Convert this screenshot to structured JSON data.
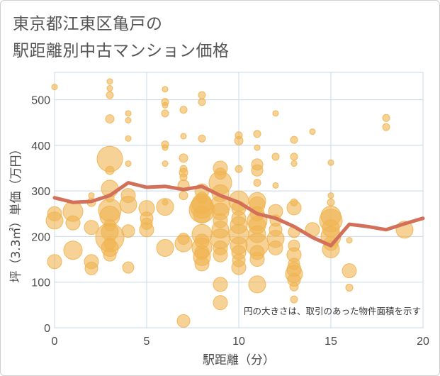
{
  "chart_data": {
    "type": "scatter",
    "title_lines": [
      "東京都江東区亀戸の",
      "駅距離別中古マンション価格"
    ],
    "xlabel": "駅距離（分）",
    "ylabel": "坪（3.3㎡）単価（万円）",
    "xlim": [
      0,
      20
    ],
    "ylim": [
      0,
      560
    ],
    "x_ticks": [
      0,
      5,
      10,
      15,
      20
    ],
    "y_ticks": [
      0,
      100,
      200,
      300,
      400,
      500
    ],
    "grid": true,
    "note": "円の大きさは、取引のあった物件面積を示す",
    "colors": {
      "bubble": "#f0b450",
      "line": "#d2705a",
      "grid": "#c8d8e8"
    },
    "trend_line": {
      "x": [
        0,
        1,
        2,
        3,
        4,
        5,
        6,
        7,
        8,
        9,
        10,
        11,
        12,
        13,
        14,
        15,
        16,
        17,
        18,
        19,
        20
      ],
      "y": [
        285,
        275,
        277,
        290,
        318,
        308,
        310,
        303,
        310,
        290,
        275,
        250,
        240,
        222,
        198,
        180,
        227,
        222,
        215,
        228,
        240
      ]
    },
    "points": [
      {
        "x": 0,
        "y": 528,
        "s": 4
      },
      {
        "x": 0,
        "y": 250,
        "s": 10
      },
      {
        "x": 0,
        "y": 235,
        "s": 12
      },
      {
        "x": 0,
        "y": 145,
        "s": 10
      },
      {
        "x": 1,
        "y": 255,
        "s": 14
      },
      {
        "x": 1,
        "y": 230,
        "s": 10
      },
      {
        "x": 1,
        "y": 170,
        "s": 13
      },
      {
        "x": 2,
        "y": 290,
        "s": 4
      },
      {
        "x": 2,
        "y": 275,
        "s": 6
      },
      {
        "x": 2,
        "y": 220,
        "s": 10
      },
      {
        "x": 2,
        "y": 145,
        "s": 10
      },
      {
        "x": 2,
        "y": 130,
        "s": 9
      },
      {
        "x": 3,
        "y": 540,
        "s": 4
      },
      {
        "x": 3,
        "y": 525,
        "s": 4
      },
      {
        "x": 3,
        "y": 510,
        "s": 5
      },
      {
        "x": 3,
        "y": 458,
        "s": 6
      },
      {
        "x": 3,
        "y": 370,
        "s": 18
      },
      {
        "x": 3,
        "y": 345,
        "s": 6
      },
      {
        "x": 3,
        "y": 305,
        "s": 12
      },
      {
        "x": 3,
        "y": 285,
        "s": 6
      },
      {
        "x": 3,
        "y": 258,
        "s": 16
      },
      {
        "x": 3,
        "y": 245,
        "s": 14
      },
      {
        "x": 3,
        "y": 225,
        "s": 8
      },
      {
        "x": 3,
        "y": 210,
        "s": 12
      },
      {
        "x": 3,
        "y": 198,
        "s": 20
      },
      {
        "x": 3,
        "y": 185,
        "s": 8
      },
      {
        "x": 3,
        "y": 175,
        "s": 12
      },
      {
        "x": 3,
        "y": 160,
        "s": 9
      },
      {
        "x": 4,
        "y": 470,
        "s": 4
      },
      {
        "x": 4,
        "y": 455,
        "s": 4
      },
      {
        "x": 4,
        "y": 415,
        "s": 4
      },
      {
        "x": 4,
        "y": 360,
        "s": 4
      },
      {
        "x": 4,
        "y": 290,
        "s": 10
      },
      {
        "x": 4,
        "y": 270,
        "s": 12
      },
      {
        "x": 4,
        "y": 212,
        "s": 9
      },
      {
        "x": 4,
        "y": 132,
        "s": 8
      },
      {
        "x": 5,
        "y": 262,
        "s": 11
      },
      {
        "x": 5,
        "y": 240,
        "s": 9
      },
      {
        "x": 5,
        "y": 228,
        "s": 8
      },
      {
        "x": 5,
        "y": 215,
        "s": 10
      },
      {
        "x": 6,
        "y": 523,
        "s": 4
      },
      {
        "x": 6,
        "y": 495,
        "s": 5
      },
      {
        "x": 6,
        "y": 488,
        "s": 4
      },
      {
        "x": 6,
        "y": 470,
        "s": 5
      },
      {
        "x": 6,
        "y": 402,
        "s": 5
      },
      {
        "x": 6,
        "y": 395,
        "s": 4
      },
      {
        "x": 6,
        "y": 360,
        "s": 4
      },
      {
        "x": 6,
        "y": 275,
        "s": 4
      },
      {
        "x": 6,
        "y": 265,
        "s": 12
      },
      {
        "x": 6,
        "y": 175,
        "s": 12
      },
      {
        "x": 7,
        "y": 478,
        "s": 5
      },
      {
        "x": 7,
        "y": 420,
        "s": 4
      },
      {
        "x": 7,
        "y": 372,
        "s": 6
      },
      {
        "x": 7,
        "y": 348,
        "s": 5
      },
      {
        "x": 7,
        "y": 340,
        "s": 6
      },
      {
        "x": 7,
        "y": 330,
        "s": 5
      },
      {
        "x": 7,
        "y": 312,
        "s": 8
      },
      {
        "x": 7,
        "y": 290,
        "s": 6
      },
      {
        "x": 7,
        "y": 195,
        "s": 8
      },
      {
        "x": 7,
        "y": 185,
        "s": 12
      },
      {
        "x": 7,
        "y": 15,
        "s": 9
      },
      {
        "x": 8,
        "y": 510,
        "s": 5
      },
      {
        "x": 8,
        "y": 495,
        "s": 5
      },
      {
        "x": 8,
        "y": 415,
        "s": 5
      },
      {
        "x": 8,
        "y": 300,
        "s": 10
      },
      {
        "x": 8,
        "y": 285,
        "s": 8
      },
      {
        "x": 8,
        "y": 272,
        "s": 14
      },
      {
        "x": 8,
        "y": 265,
        "s": 16
      },
      {
        "x": 8,
        "y": 258,
        "s": 18
      },
      {
        "x": 8,
        "y": 248,
        "s": 12
      },
      {
        "x": 8,
        "y": 205,
        "s": 14
      },
      {
        "x": 8,
        "y": 190,
        "s": 10
      },
      {
        "x": 8,
        "y": 175,
        "s": 14
      },
      {
        "x": 8,
        "y": 165,
        "s": 10
      },
      {
        "x": 8,
        "y": 155,
        "s": 12
      },
      {
        "x": 8,
        "y": 140,
        "s": 10
      },
      {
        "x": 9,
        "y": 350,
        "s": 10
      },
      {
        "x": 9,
        "y": 338,
        "s": 8
      },
      {
        "x": 9,
        "y": 318,
        "s": 16
      },
      {
        "x": 9,
        "y": 295,
        "s": 12
      },
      {
        "x": 9,
        "y": 268,
        "s": 14
      },
      {
        "x": 9,
        "y": 255,
        "s": 12
      },
      {
        "x": 9,
        "y": 235,
        "s": 10
      },
      {
        "x": 9,
        "y": 215,
        "s": 12
      },
      {
        "x": 9,
        "y": 195,
        "s": 14
      },
      {
        "x": 9,
        "y": 175,
        "s": 10
      },
      {
        "x": 9,
        "y": 160,
        "s": 10
      },
      {
        "x": 9,
        "y": 95,
        "s": 10
      },
      {
        "x": 9,
        "y": 55,
        "s": 10
      },
      {
        "x": 10,
        "y": 422,
        "s": 5
      },
      {
        "x": 10,
        "y": 410,
        "s": 6
      },
      {
        "x": 10,
        "y": 348,
        "s": 5
      },
      {
        "x": 10,
        "y": 278,
        "s": 14
      },
      {
        "x": 10,
        "y": 262,
        "s": 10
      },
      {
        "x": 10,
        "y": 240,
        "s": 10
      },
      {
        "x": 10,
        "y": 225,
        "s": 12
      },
      {
        "x": 10,
        "y": 205,
        "s": 14
      },
      {
        "x": 10,
        "y": 180,
        "s": 12
      },
      {
        "x": 10,
        "y": 165,
        "s": 10
      },
      {
        "x": 10,
        "y": 148,
        "s": 9
      },
      {
        "x": 10,
        "y": 132,
        "s": 10
      },
      {
        "x": 11,
        "y": 425,
        "s": 5
      },
      {
        "x": 11,
        "y": 395,
        "s": 4
      },
      {
        "x": 11,
        "y": 358,
        "s": 8
      },
      {
        "x": 11,
        "y": 345,
        "s": 8
      },
      {
        "x": 11,
        "y": 318,
        "s": 5
      },
      {
        "x": 11,
        "y": 278,
        "s": 12
      },
      {
        "x": 11,
        "y": 270,
        "s": 11
      },
      {
        "x": 11,
        "y": 250,
        "s": 10
      },
      {
        "x": 11,
        "y": 235,
        "s": 14
      },
      {
        "x": 11,
        "y": 225,
        "s": 12
      },
      {
        "x": 11,
        "y": 205,
        "s": 12
      },
      {
        "x": 11,
        "y": 182,
        "s": 16
      },
      {
        "x": 11,
        "y": 165,
        "s": 10
      },
      {
        "x": 11,
        "y": 150,
        "s": 10
      },
      {
        "x": 11,
        "y": 95,
        "s": 12
      },
      {
        "x": 12,
        "y": 470,
        "s": 4
      },
      {
        "x": 12,
        "y": 375,
        "s": 5
      },
      {
        "x": 12,
        "y": 312,
        "s": 4
      },
      {
        "x": 12,
        "y": 255,
        "s": 10
      },
      {
        "x": 12,
        "y": 235,
        "s": 8
      },
      {
        "x": 12,
        "y": 215,
        "s": 9
      },
      {
        "x": 12,
        "y": 195,
        "s": 12
      },
      {
        "x": 12,
        "y": 175,
        "s": 10
      },
      {
        "x": 13,
        "y": 412,
        "s": 5
      },
      {
        "x": 13,
        "y": 375,
        "s": 5
      },
      {
        "x": 13,
        "y": 360,
        "s": 4
      },
      {
        "x": 13,
        "y": 275,
        "s": 5
      },
      {
        "x": 13,
        "y": 263,
        "s": 10
      },
      {
        "x": 13,
        "y": 210,
        "s": 8
      },
      {
        "x": 13,
        "y": 180,
        "s": 8
      },
      {
        "x": 13,
        "y": 160,
        "s": 10
      },
      {
        "x": 13,
        "y": 140,
        "s": 8
      },
      {
        "x": 13,
        "y": 128,
        "s": 10
      },
      {
        "x": 13,
        "y": 118,
        "s": 12
      },
      {
        "x": 13,
        "y": 105,
        "s": 9
      },
      {
        "x": 13,
        "y": 90,
        "s": 6
      },
      {
        "x": 13,
        "y": 62,
        "s": 5
      },
      {
        "x": 14,
        "y": 430,
        "s": 4
      },
      {
        "x": 14,
        "y": 215,
        "s": 10
      },
      {
        "x": 15,
        "y": 362,
        "s": 4
      },
      {
        "x": 15,
        "y": 290,
        "s": 4
      },
      {
        "x": 15,
        "y": 275,
        "s": 5
      },
      {
        "x": 15,
        "y": 245,
        "s": 14
      },
      {
        "x": 15,
        "y": 235,
        "s": 16
      },
      {
        "x": 15,
        "y": 218,
        "s": 12
      },
      {
        "x": 15,
        "y": 200,
        "s": 14
      },
      {
        "x": 15,
        "y": 185,
        "s": 10
      },
      {
        "x": 15,
        "y": 172,
        "s": 12
      },
      {
        "x": 16,
        "y": 192,
        "s": 4
      },
      {
        "x": 16,
        "y": 125,
        "s": 10
      },
      {
        "x": 16,
        "y": 88,
        "s": 5
      },
      {
        "x": 18,
        "y": 460,
        "s": 5
      },
      {
        "x": 18,
        "y": 440,
        "s": 5
      },
      {
        "x": 19,
        "y": 215,
        "s": 12
      }
    ]
  }
}
